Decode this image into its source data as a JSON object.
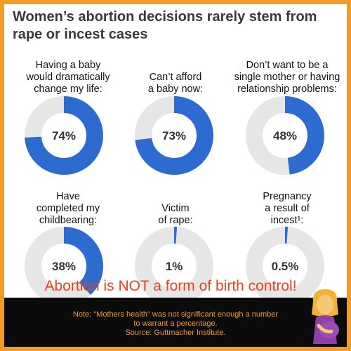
{
  "title": "Women’s abortion decisions rarely stem from rape or incest cases",
  "banner": "Abortion is NOT a form of birth control!",
  "notes": {
    "line1": "Note: \"Mothers health\" was not significant enough a number",
    "line2": "to warrant a percentage.",
    "line3": "Source: Guttmacher Institute."
  },
  "emoji": "pregnant-woman-icon",
  "colors": {
    "fill": "#2e6bd1",
    "track": "#e6e6e6",
    "frame": "#f39a2c",
    "banner": "#e8411e"
  },
  "chart_data": {
    "type": "pie",
    "title": "Women’s abortion decisions rarely stem from rape or incest cases",
    "items": [
      {
        "label": "Having a baby\nwould dramatically\nchange my life:",
        "value": 74,
        "display": "74%"
      },
      {
        "label": "Can’t afford\na baby now:",
        "value": 73,
        "display": "73%"
      },
      {
        "label": "Don’t want to be a\nsingle mother or having\nrelationship problems:",
        "value": 48,
        "display": "48%"
      },
      {
        "label": "Have\ncompleted my\nchildbearing:",
        "value": 38,
        "display": "38%"
      },
      {
        "label": "Victim\nof rape:",
        "value": 1,
        "display": "1%"
      },
      {
        "label": "Pregnancy\na result of\nincest¹:",
        "value": 0.5,
        "display": "0.5%"
      }
    ]
  }
}
